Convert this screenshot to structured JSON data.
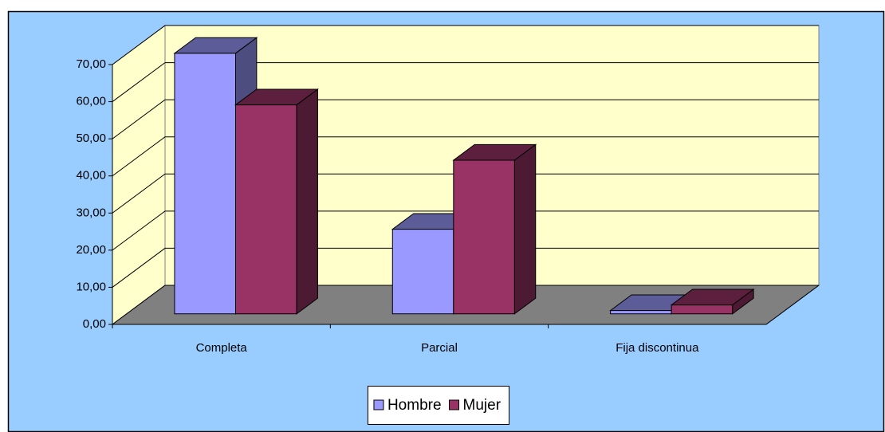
{
  "chart_data": {
    "type": "bar3d",
    "categories": [
      "Completa",
      "Parcial",
      "Fija discontinua"
    ],
    "series": [
      {
        "name": "Hombre",
        "color": "#9999ff",
        "values": [
          70.2,
          22.8,
          0.9
        ]
      },
      {
        "name": "Mujer",
        "color": "#993366",
        "values": [
          56.3,
          41.4,
          2.4
        ]
      }
    ],
    "ylim": [
      0,
      70
    ],
    "yticks": [
      {
        "value": 0,
        "label": "0,00"
      },
      {
        "value": 10,
        "label": "10,00"
      },
      {
        "value": 20,
        "label": "20,00"
      },
      {
        "value": 30,
        "label": "30,00"
      },
      {
        "value": 40,
        "label": "40,00"
      },
      {
        "value": 50,
        "label": "50,00"
      },
      {
        "value": 60,
        "label": "60,00"
      },
      {
        "value": 70,
        "label": "70,00"
      }
    ],
    "grid": true,
    "legend": "bottom"
  }
}
